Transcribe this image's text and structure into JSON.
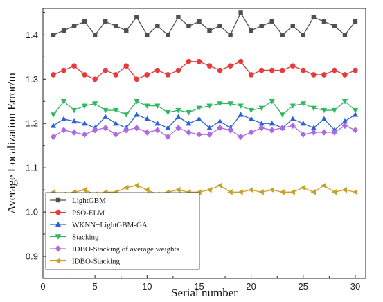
{
  "chart_data": {
    "type": "line",
    "title": "",
    "xlabel": "Serial number",
    "ylabel": "Average Localization Error/m",
    "xlim": [
      0,
      31
    ],
    "ylim": [
      0.85,
      1.46
    ],
    "xticks": [
      0,
      5,
      10,
      15,
      20,
      25,
      30
    ],
    "yticks": [
      0.9,
      1.0,
      1.1,
      1.2,
      1.3,
      1.4
    ],
    "ytick_labels": [
      "0.9",
      "1.0",
      "1.1",
      "1.2",
      "1.3",
      "1.4"
    ],
    "grid": false,
    "legend_position": "lower-left",
    "x": [
      1,
      2,
      3,
      4,
      5,
      6,
      7,
      8,
      9,
      10,
      11,
      12,
      13,
      14,
      15,
      16,
      17,
      18,
      19,
      20,
      21,
      22,
      23,
      24,
      25,
      26,
      27,
      28,
      29,
      30
    ],
    "series": [
      {
        "name": "LightGBM",
        "color": "#505050",
        "marker": "square",
        "values": [
          1.4,
          1.41,
          1.42,
          1.43,
          1.4,
          1.43,
          1.42,
          1.41,
          1.44,
          1.4,
          1.42,
          1.4,
          1.44,
          1.42,
          1.43,
          1.41,
          1.42,
          1.4,
          1.45,
          1.41,
          1.42,
          1.43,
          1.4,
          1.42,
          1.4,
          1.44,
          1.43,
          1.42,
          1.4,
          1.43
        ]
      },
      {
        "name": "PSO-ELM",
        "color": "#e63b3b",
        "marker": "circle",
        "values": [
          1.31,
          1.32,
          1.33,
          1.31,
          1.3,
          1.32,
          1.31,
          1.33,
          1.3,
          1.31,
          1.32,
          1.31,
          1.32,
          1.34,
          1.34,
          1.33,
          1.32,
          1.33,
          1.34,
          1.31,
          1.32,
          1.32,
          1.32,
          1.33,
          1.32,
          1.31,
          1.31,
          1.32,
          1.31,
          1.32
        ]
      },
      {
        "name": "WKNN+LightGBM-GA",
        "color": "#2a62d8",
        "marker": "triangle-up",
        "values": [
          1.195,
          1.21,
          1.205,
          1.2,
          1.19,
          1.215,
          1.2,
          1.19,
          1.22,
          1.21,
          1.2,
          1.19,
          1.215,
          1.2,
          1.21,
          1.19,
          1.205,
          1.19,
          1.22,
          1.21,
          1.2,
          1.2,
          1.19,
          1.21,
          1.2,
          1.19,
          1.21,
          1.185,
          1.205,
          1.22
        ]
      },
      {
        "name": "Stacking",
        "color": "#30b860",
        "marker": "triangle-down",
        "values": [
          1.22,
          1.25,
          1.23,
          1.24,
          1.245,
          1.23,
          1.23,
          1.22,
          1.25,
          1.24,
          1.24,
          1.225,
          1.23,
          1.225,
          1.235,
          1.24,
          1.245,
          1.245,
          1.24,
          1.23,
          1.235,
          1.25,
          1.22,
          1.24,
          1.245,
          1.235,
          1.23,
          1.23,
          1.25,
          1.23
        ]
      },
      {
        "name": "IDBO-Stacking of average weights",
        "color": "#b06ae0",
        "marker": "diamond",
        "values": [
          1.17,
          1.185,
          1.18,
          1.175,
          1.185,
          1.19,
          1.175,
          1.185,
          1.19,
          1.18,
          1.185,
          1.17,
          1.19,
          1.18,
          1.175,
          1.175,
          1.19,
          1.185,
          1.17,
          1.18,
          1.19,
          1.185,
          1.19,
          1.195,
          1.175,
          1.18,
          1.18,
          1.18,
          1.195,
          1.185
        ]
      },
      {
        "name": "IDBO-Stacking",
        "color": "#c9a12a",
        "marker": "triangle-left",
        "values": [
          1.045,
          1.04,
          1.045,
          1.05,
          1.04,
          1.045,
          1.045,
          1.055,
          1.06,
          1.05,
          1.04,
          1.045,
          1.05,
          1.045,
          1.045,
          1.05,
          1.06,
          1.045,
          1.045,
          1.05,
          1.045,
          1.05,
          1.045,
          1.045,
          1.055,
          1.045,
          1.06,
          1.045,
          1.05,
          1.045
        ]
      }
    ]
  }
}
